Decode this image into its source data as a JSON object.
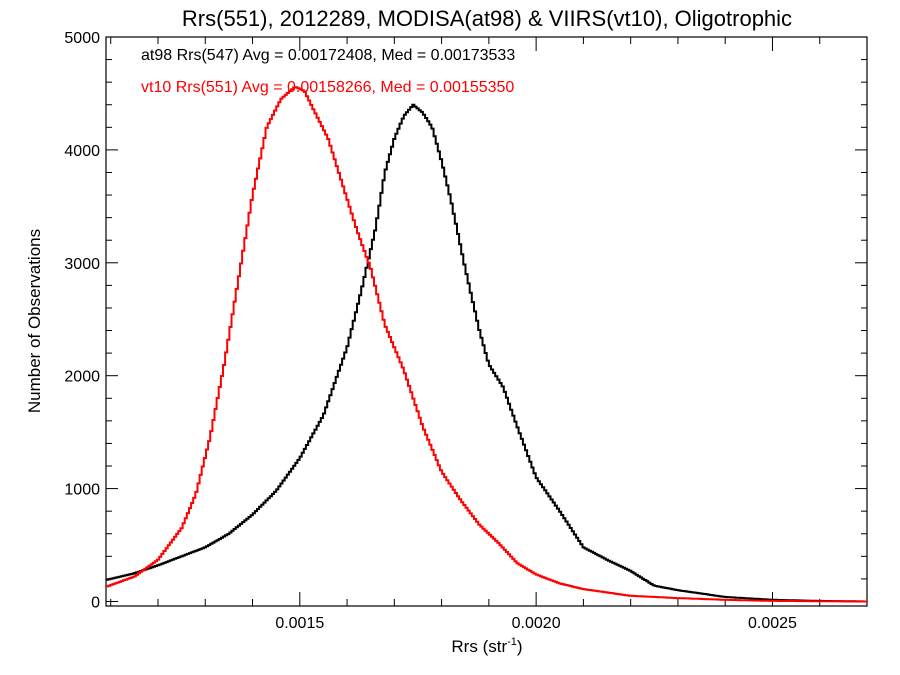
{
  "chart_data": {
    "type": "histogram",
    "title": "Rrs(551), 2012289, MODISA(at98) & VIIRS(vt10), Oligotrophic",
    "xlabel_base": "Rrs (str",
    "xlabel_sup": "-1",
    "xlabel_close": ")",
    "ylabel": "Number of Observations",
    "xlim": [
      0.00109,
      0.0027
    ],
    "ylim": [
      -40,
      5000
    ],
    "x_ticks": [
      0.0015,
      0.002,
      0.0025
    ],
    "x_tick_labels": [
      "0.0015",
      "0.0020",
      "0.0025"
    ],
    "y_ticks": [
      0,
      1000,
      2000,
      3000,
      4000,
      5000
    ],
    "y_tick_labels": [
      "0",
      "1000",
      "2000",
      "3000",
      "4000",
      "5000"
    ],
    "annotations": [
      "at98 Rrs(547) Avg = 0.00172408, Med = 0.00173533",
      "vt10 Rrs(551) Avg = 0.00158266, Med = 0.00155350"
    ],
    "series": [
      {
        "color": "#000000",
        "points": [
          [
            0.00109,
            190
          ],
          [
            0.00115,
            250
          ],
          [
            0.0012,
            320
          ],
          [
            0.00125,
            400
          ],
          [
            0.0013,
            480
          ],
          [
            0.00135,
            600
          ],
          [
            0.0014,
            770
          ],
          [
            0.00145,
            980
          ],
          [
            0.0015,
            1270
          ],
          [
            0.00155,
            1650
          ],
          [
            0.0016,
            2250
          ],
          [
            0.00163,
            2750
          ],
          [
            0.00166,
            3300
          ],
          [
            0.00168,
            3800
          ],
          [
            0.0017,
            4100
          ],
          [
            0.00172,
            4300
          ],
          [
            0.00174,
            4400
          ],
          [
            0.00176,
            4330
          ],
          [
            0.00178,
            4200
          ],
          [
            0.0018,
            3900
          ],
          [
            0.00182,
            3550
          ],
          [
            0.00185,
            2950
          ],
          [
            0.00188,
            2400
          ],
          [
            0.0019,
            2100
          ],
          [
            0.00193,
            1900
          ],
          [
            0.00196,
            1550
          ],
          [
            0.002,
            1100
          ],
          [
            0.00205,
            800
          ],
          [
            0.0021,
            480
          ],
          [
            0.00215,
            370
          ],
          [
            0.0022,
            270
          ],
          [
            0.00225,
            140
          ],
          [
            0.0023,
            100
          ],
          [
            0.0024,
            40
          ],
          [
            0.0025,
            15
          ],
          [
            0.0026,
            5
          ],
          [
            0.0027,
            0
          ]
        ]
      },
      {
        "color": "#ff0000",
        "points": [
          [
            0.00109,
            130
          ],
          [
            0.00115,
            220
          ],
          [
            0.0012,
            370
          ],
          [
            0.00125,
            650
          ],
          [
            0.00128,
            950
          ],
          [
            0.00131,
            1450
          ],
          [
            0.00134,
            2100
          ],
          [
            0.00137,
            2850
          ],
          [
            0.0014,
            3600
          ],
          [
            0.00143,
            4200
          ],
          [
            0.00146,
            4450
          ],
          [
            0.00149,
            4560
          ],
          [
            0.00151,
            4520
          ],
          [
            0.00153,
            4350
          ],
          [
            0.00156,
            4100
          ],
          [
            0.00159,
            3700
          ],
          [
            0.00162,
            3300
          ],
          [
            0.00165,
            2950
          ],
          [
            0.00168,
            2450
          ],
          [
            0.00172,
            2050
          ],
          [
            0.00176,
            1550
          ],
          [
            0.0018,
            1150
          ],
          [
            0.00184,
            900
          ],
          [
            0.00188,
            680
          ],
          [
            0.00192,
            520
          ],
          [
            0.00196,
            340
          ],
          [
            0.002,
            240
          ],
          [
            0.00205,
            160
          ],
          [
            0.0021,
            110
          ],
          [
            0.00215,
            80
          ],
          [
            0.0022,
            50
          ],
          [
            0.0023,
            30
          ],
          [
            0.0024,
            15
          ],
          [
            0.0025,
            5
          ],
          [
            0.0027,
            0
          ]
        ]
      }
    ],
    "colors": {
      "series_1": "#000000",
      "series_2": "#ff0000"
    }
  }
}
